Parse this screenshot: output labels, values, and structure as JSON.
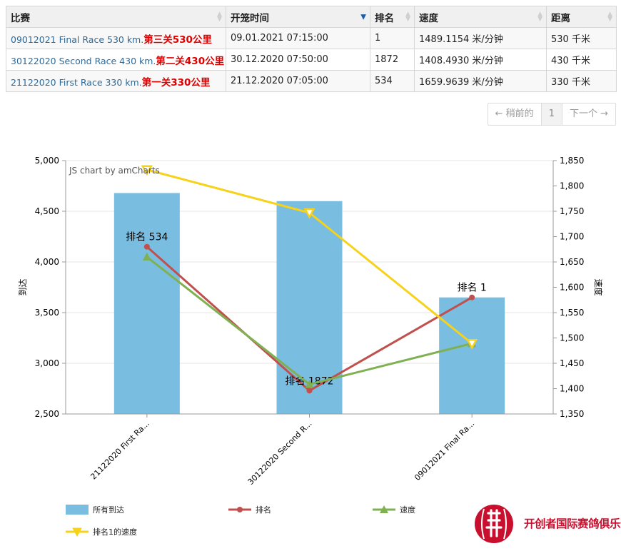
{
  "table": {
    "headers": [
      {
        "label": "比赛",
        "sort": "none"
      },
      {
        "label": "开笼时间",
        "sort": "desc"
      },
      {
        "label": "排名",
        "sort": "none"
      },
      {
        "label": "速度",
        "sort": "none"
      },
      {
        "label": "距离",
        "sort": "none"
      }
    ],
    "rows": [
      {
        "race": "09012021 Final Race 530 km.",
        "race_cn": "第三关530公里",
        "time": "09.01.2021 07:15:00",
        "rank": "1",
        "speed": "1489.1154 米/分钟",
        "distance": "530 千米"
      },
      {
        "race": "30122020 Second Race 430 km.",
        "race_cn": "第二关430公里",
        "time": "30.12.2020 07:50:00",
        "rank": "1872",
        "speed": "1408.4930 米/分钟",
        "distance": "430 千米"
      },
      {
        "race": "21122020 First Race 330 km.",
        "race_cn": "第一关330公里",
        "time": "21.12.2020 07:05:00",
        "rank": "534",
        "speed": "1659.9639 米/分钟",
        "distance": "330 千米"
      }
    ]
  },
  "pager": {
    "prev": "← 稍前的",
    "page": "1",
    "next": "下一个 →"
  },
  "chart_data": {
    "type": "bar",
    "credit": "JS chart by amCharts",
    "categories": [
      "21122020 First Ra...",
      "30122020 Second R...",
      "09012021 Final Ra..."
    ],
    "y_left": {
      "label": "到达",
      "min": 2500,
      "max": 5000,
      "step": 500
    },
    "y_right": {
      "label": "速度",
      "min": 1350,
      "max": 1850,
      "step": 50
    },
    "series": [
      {
        "name": "所有到达",
        "kind": "bar",
        "axis": "left",
        "color": "#79bde0",
        "values": [
          4680,
          4600,
          3650
        ]
      },
      {
        "name": "排名",
        "kind": "line",
        "axis": "left",
        "color": "#c0504d",
        "marker": "circle",
        "values": [
          4150,
          2730,
          3650
        ],
        "labels": [
          "排名 534",
          "排名 1872",
          "排名 1"
        ]
      },
      {
        "name": "速度",
        "kind": "line",
        "axis": "right",
        "color": "#7fb052",
        "marker": "triangle-up",
        "values": [
          1659.9639,
          1408.493,
          1489.1154
        ]
      },
      {
        "name": "排名1的速度",
        "kind": "line",
        "axis": "right",
        "color": "#f6d21a",
        "marker": "triangle-down",
        "values": [
          1832,
          1747,
          1489
        ]
      }
    ]
  },
  "logo": {
    "text": "开创者国际赛鸽俱乐部",
    "seal": "開"
  }
}
